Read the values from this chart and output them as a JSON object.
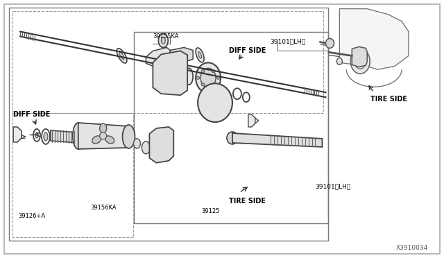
{
  "bg_color": "#ffffff",
  "labels": {
    "diff_side_left": "DIFF SIDE",
    "diff_side_top": "DIFF SIDE",
    "tire_side_right": "TIRE SIDE",
    "tire_side_bottom": "TIRE SIDE",
    "part_39101_lh_top": "39101〈LH〉",
    "part_39101_lh_bot": "39101〈LH〉",
    "part_39155ka": "39155KA",
    "part_39156ka": "39156KA",
    "part_39126a": "39126+A",
    "part_39125": "39125",
    "diagram_code": "X3910034"
  },
  "figsize": [
    6.4,
    3.72
  ],
  "dpi": 100
}
